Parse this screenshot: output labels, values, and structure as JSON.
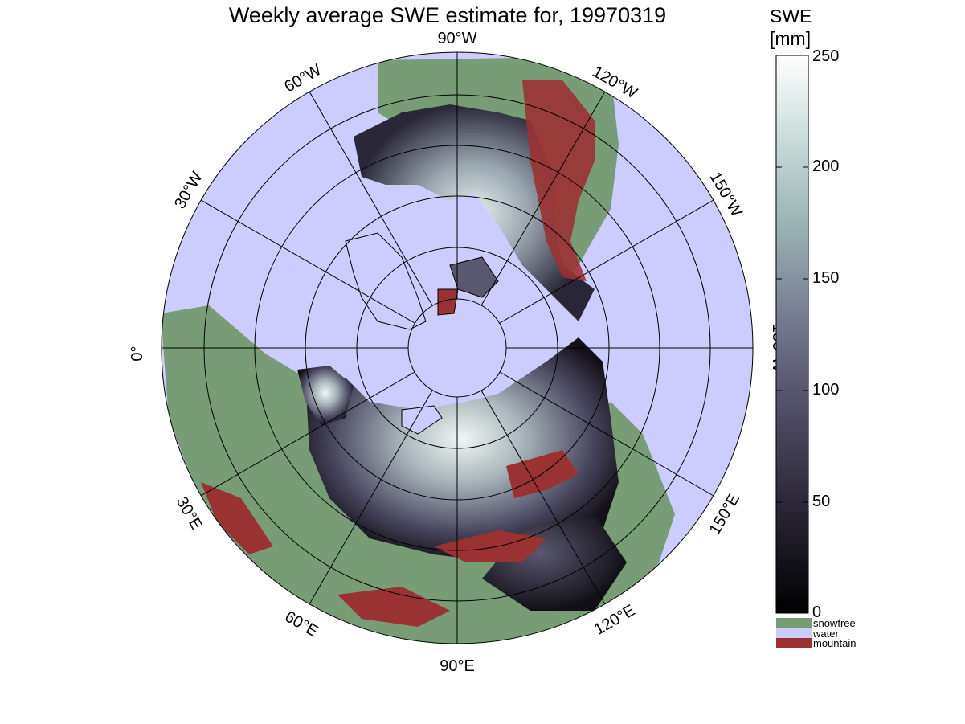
{
  "title": "Weekly average SWE estimate for, 19970319",
  "colorbar": {
    "title_line1": "SWE",
    "title_line2": "[mm]",
    "ticks": [
      "0",
      "50",
      "100",
      "150",
      "200",
      "250"
    ],
    "min": 0,
    "max": 250
  },
  "legend": [
    {
      "label": "snowfree",
      "color": "#789c75"
    },
    {
      "label": "water",
      "color": "#ccccff"
    },
    {
      "label": "mountain",
      "color": "#9a3232"
    }
  ],
  "map": {
    "projection": "north polar stereographic",
    "longitude_labels": [
      "90°W",
      "120°W",
      "150°W",
      "180°W",
      "150°E",
      "120°E",
      "90°E",
      "60°E",
      "30°E",
      "0°",
      "30°W",
      "60°W"
    ],
    "colors": {
      "water": "#ccccff",
      "snowfree": "#789c75",
      "mountain": "#9a3232"
    }
  }
}
